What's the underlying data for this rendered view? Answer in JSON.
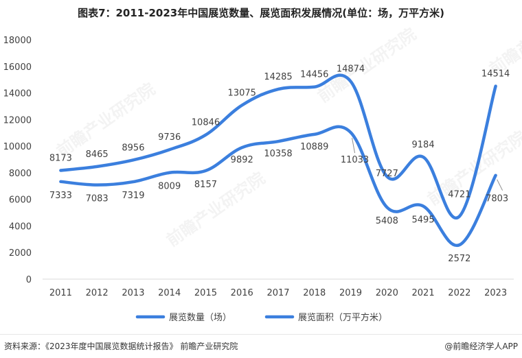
{
  "title": "图表7：2011-2023年中国展览数量、展览面积发展情况(单位：场，万平方米)",
  "footer": {
    "source": "资料来源：《2023年度中国展览数据统计报告》 前瞻产业研究院",
    "brand": "@前瞻经济学人APP"
  },
  "watermark": "前瞻产业研究院",
  "colors": {
    "series": "#3b7fde",
    "axis": "#d9d9d9",
    "label": "#404040"
  },
  "chart_data": {
    "type": "line",
    "categories": [
      "2011",
      "2012",
      "2013",
      "2014",
      "2015",
      "2016",
      "2017",
      "2018",
      "2019",
      "2020",
      "2021",
      "2022",
      "2023"
    ],
    "series": [
      {
        "name": "展览数量（场）",
        "values": [
          8173,
          8465,
          8956,
          9736,
          10846,
          13075,
          14285,
          14456,
          14874,
          7727,
          9184,
          4721,
          14514
        ]
      },
      {
        "name": "展览面积（万平方米）",
        "values": [
          7333,
          7083,
          7319,
          8009,
          8157,
          9892,
          10358,
          10889,
          11033,
          5408,
          5495,
          2572,
          7803
        ]
      }
    ],
    "yticks": [
      0,
      2000,
      4000,
      6000,
      8000,
      10000,
      12000,
      14000,
      16000,
      18000
    ],
    "ylim": [
      0,
      18000
    ],
    "grid": false,
    "legend": "bottom",
    "smooth": true
  }
}
